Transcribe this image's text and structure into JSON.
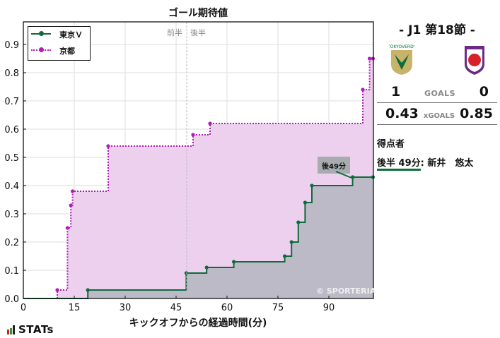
{
  "chart_data": {
    "type": "line",
    "subtype": "step-area",
    "title": "ゴール期待値",
    "xlabel": "キックオフからの経過時間(分)",
    "ylabel": "",
    "xlim": [
      0,
      103
    ],
    "ylim": [
      0,
      0.98
    ],
    "xticks": [
      0,
      15,
      30,
      45,
      60,
      75,
      90
    ],
    "yticks": [
      0.0,
      0.1,
      0.2,
      0.3,
      0.4,
      0.5,
      0.6,
      0.7,
      0.8,
      0.9
    ],
    "grid": true,
    "legend_position": "upper left",
    "half_divider": {
      "x": 48,
      "labels": [
        "前半",
        "後半"
      ]
    },
    "series": [
      {
        "name": "東京Ｖ",
        "color": "#0e6b3a",
        "fill": "#bdbac8",
        "linestyle": "solid",
        "x": [
          0,
          19,
          48,
          54,
          62,
          77,
          79,
          81,
          83,
          85,
          97,
          103
        ],
        "y": [
          0,
          0.03,
          0.09,
          0.11,
          0.13,
          0.15,
          0.2,
          0.27,
          0.34,
          0.4,
          0.43,
          0.43
        ]
      },
      {
        "name": "京都",
        "color": "#b01cb5",
        "fill": "#ecd0ee",
        "linestyle": "dotted",
        "x": [
          0,
          10,
          13,
          14,
          14.5,
          25,
          50,
          55,
          100,
          102,
          103
        ],
        "y": [
          0,
          0.03,
          0.25,
          0.33,
          0.38,
          0.54,
          0.58,
          0.62,
          0.74,
          0.85,
          0.85
        ]
      }
    ],
    "annotations": [
      {
        "text": "後49分",
        "x": 97,
        "y": 0.43,
        "series": "東京Ｖ"
      },
      {
        "text": "© SPORTERIA",
        "position": "bottom-right"
      }
    ]
  },
  "legend": {
    "items": [
      {
        "label": "東京Ｖ",
        "color": "#0e6b3a"
      },
      {
        "label": "京都",
        "color": "#b01cb5"
      }
    ]
  },
  "halves": {
    "first": "前半",
    "second": "後半"
  },
  "annotation_goal": "後49分",
  "watermark": "© SPORTERIA",
  "brand": "STATs",
  "match": {
    "title": "- J1 第18節 -",
    "home_team_logo": "tokyo-verdy-logo",
    "away_team_logo": "kyoto-sanga-logo",
    "goals": {
      "home": "1",
      "label": "GOALS",
      "away": "0"
    },
    "xgoals": {
      "home": "0.43",
      "label": "xGOALS",
      "away": "0.85"
    },
    "scorers_title": "得点者",
    "scorers": [
      {
        "time": "後半 49分",
        "name": ": 新井　悠太"
      }
    ]
  }
}
